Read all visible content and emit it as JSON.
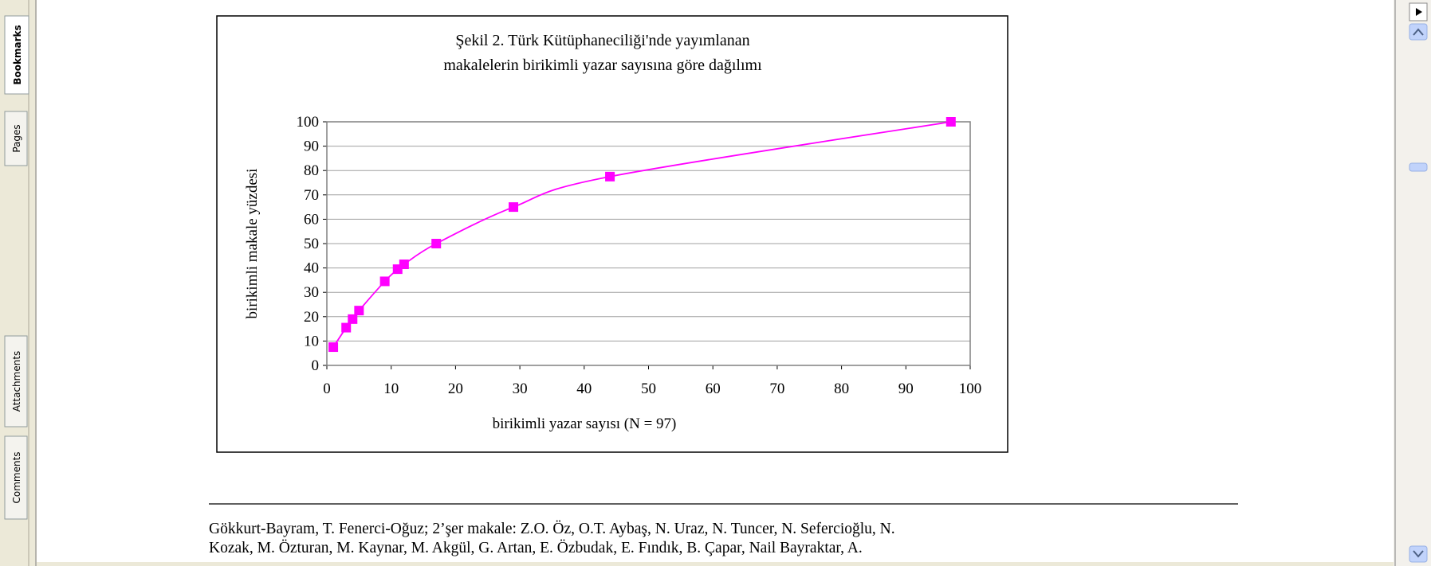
{
  "sidebar": {
    "tabs": [
      "Bookmarks",
      "Pages",
      "Attachments",
      "Comments"
    ]
  },
  "chart_data": {
    "type": "line",
    "title": [
      "Şekil 2. Türk Kütüphaneciliği'nde yayımlanan",
      "makalelerin birikimli yazar sayısına göre dağılımı"
    ],
    "x_label": "birikimli yazar sayısı (N = 97)",
    "y_label": "birikimli makale yüzdesi",
    "x": [
      1,
      3,
      4,
      5,
      9,
      11,
      12,
      17,
      29,
      44,
      97
    ],
    "series": [
      {
        "name": null,
        "color": "#ff00ff",
        "values": [
          7.5,
          15.5,
          19,
          22.5,
          34.5,
          39.5,
          41.5,
          50,
          65,
          77.5,
          100
        ]
      }
    ],
    "xlim": [
      0,
      100
    ],
    "xticks": [
      0,
      10,
      20,
      30,
      40,
      50,
      60,
      70,
      80,
      90,
      100
    ],
    "ylim": [
      0,
      100
    ],
    "yticks": [
      0,
      10,
      20,
      30,
      40,
      50,
      60,
      70,
      80,
      90,
      100
    ],
    "grid": true
  },
  "footnote": [
    "Gökkurt-Bayram, T. Fenerci-Oğuz; 2’şer makale: Z.O. Öz, O.T. Aybaş, N. Uraz, N. Tuncer, N. Sefercioğlu, N.",
    "Kozak, M. Özturan, M. Kaynar, M. Akgül, G. Artan, E. Özbudak, E. Fındık, B. Çapar, Nail Bayraktar, A."
  ]
}
